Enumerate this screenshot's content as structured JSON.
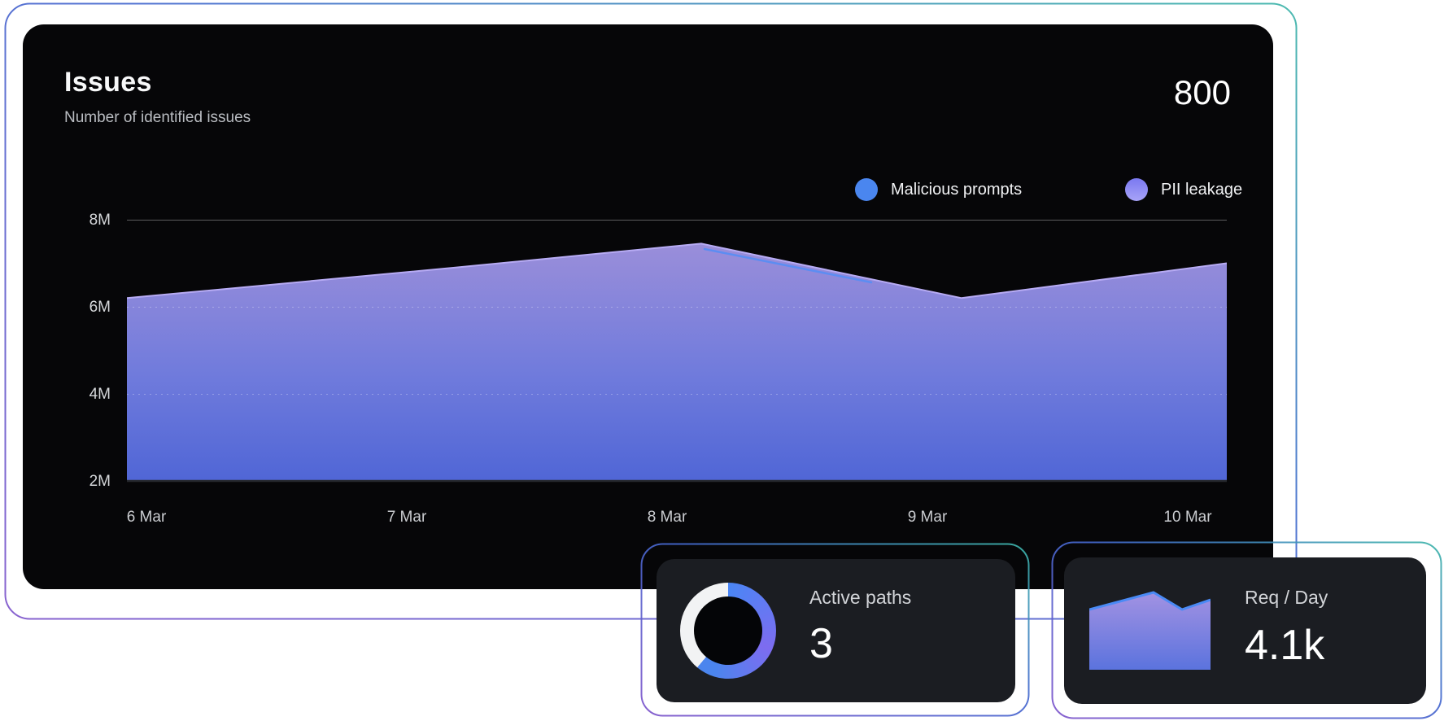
{
  "issues_card": {
    "title": "Issues",
    "subtitle": "Number of identified issues",
    "total": "800",
    "legend": [
      {
        "label": "Malicious prompts",
        "color": "#4a86ef"
      },
      {
        "label": "PII leakage",
        "color": "#8d84f2"
      }
    ],
    "y_ticks": [
      "8M",
      "6M",
      "4M",
      "2M"
    ],
    "x_ticks": [
      "6 Mar",
      "7 Mar",
      "8 Mar",
      "9 Mar",
      "10 Mar"
    ]
  },
  "active_paths_card": {
    "label": "Active paths",
    "value": "3"
  },
  "req_day_card": {
    "label": "Req / Day",
    "value": "4.1k"
  },
  "chart_data": [
    {
      "type": "area",
      "title": "Issues",
      "subtitle": "Number of identified issues",
      "total_label": "800",
      "x": [
        "6 Mar",
        "7 Mar",
        "8 Mar",
        "9 Mar",
        "10 Mar"
      ],
      "series": [
        {
          "name": "Malicious prompts",
          "values": [
            6.2,
            6.9,
            7.3,
            6.2,
            7.0
          ],
          "unit": "M",
          "color": "#5c8df2"
        },
        {
          "name": "PII leakage",
          "values": [
            6.2,
            6.9,
            7.45,
            6.2,
            7.0
          ],
          "unit": "M",
          "color": "#b7abf4"
        }
      ],
      "ylabel": "",
      "xlabel": "",
      "ylim": [
        2,
        8
      ],
      "y_tick_labels": [
        "8M",
        "6M",
        "4M",
        "2M"
      ],
      "grid": "solid line at 8M, dashed at 6M and 4M, dark baseline at 2M",
      "legend_position": "top-right",
      "fill": "vertical gradient lavender #9a8eda to blue #5066d6"
    },
    {
      "type": "donut",
      "label": "Active paths",
      "value": 3,
      "segments": [
        {
          "name": "active",
          "fraction": 0.61,
          "color": "blue-to-purple gradient #4a86f5 -> #7d6cf0 -> #4b85ee"
        },
        {
          "name": "remainder",
          "fraction": 0.39,
          "color": "#f2f3f4"
        }
      ],
      "hole_color": "#040507"
    },
    {
      "type": "area",
      "label": "Req / Day",
      "value": "4.1k",
      "values_rel": [
        0.763,
        0.979,
        0.763,
        0.887
      ],
      "fill": "vertical gradient #a292e2 to #5b73de",
      "stroke": "#4a8af5"
    }
  ],
  "colors": {
    "page_bg": "#ffffff",
    "main_card_bg": "#060608",
    "stat_card_bg": "#1b1d22",
    "ring_teal": "#3db4a9",
    "ring_blue": "#4468cf",
    "ring_purple": "#7e55cb",
    "area_stroke": "#b7abf4",
    "area_blue_stroke": "#5c8df2"
  }
}
